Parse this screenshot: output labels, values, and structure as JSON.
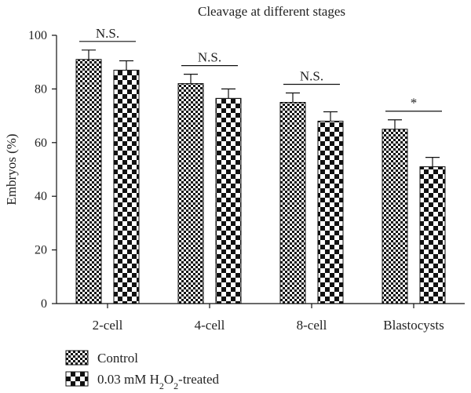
{
  "chart_data": {
    "type": "bar",
    "title": "Cleavage at different stages",
    "xlabel": "",
    "ylabel": "Embryos (%)",
    "ylim": [
      0,
      100
    ],
    "yticks": [
      0,
      20,
      40,
      60,
      80,
      100
    ],
    "categories": [
      "2-cell",
      "4-cell",
      "8-cell",
      "Blastocysts"
    ],
    "series": [
      {
        "name": "Control",
        "pattern": "fine-checker",
        "values": [
          91,
          82,
          75,
          65
        ],
        "errors": [
          3.5,
          3.5,
          3.5,
          3.5
        ]
      },
      {
        "name": "0.03 mM H2O2-treated",
        "pattern": "coarse-checker",
        "values": [
          87,
          76.5,
          68,
          51
        ],
        "errors": [
          3.5,
          3.5,
          3.5,
          3.5
        ]
      }
    ],
    "significance": [
      "N.S.",
      "N.S.",
      "N.S.",
      "*"
    ],
    "legend_position": "bottom-left",
    "grid": false,
    "colors": {
      "ink": "#111111",
      "background": "#ffffff"
    }
  }
}
